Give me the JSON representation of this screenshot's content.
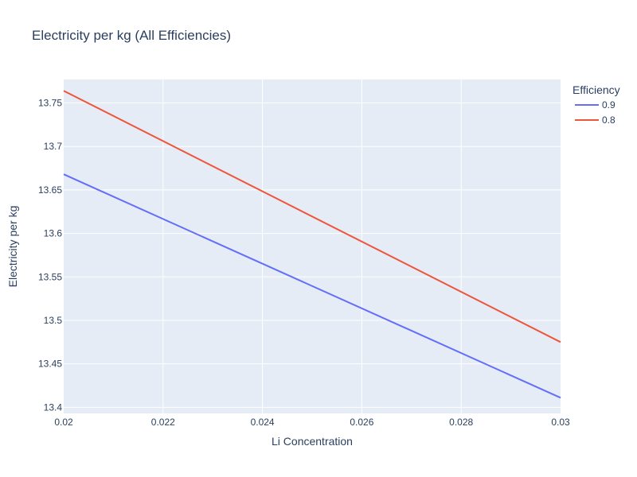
{
  "chart_data": {
    "type": "line",
    "title": "Electricity per kg (All Efficiencies)",
    "xlabel": "Li Concentration",
    "ylabel": "Electricity per kg",
    "xlim": [
      0.02,
      0.03
    ],
    "ylim": [
      13.393,
      13.777
    ],
    "x_ticks": [
      "0.02",
      "0.022",
      "0.024",
      "0.026",
      "0.028",
      "0.03"
    ],
    "y_ticks": [
      "13.4",
      "13.45",
      "13.5",
      "13.55",
      "13.6",
      "13.65",
      "13.7",
      "13.75"
    ],
    "grid": true,
    "legend_title": "Efficiency",
    "legend_position": "top-right",
    "background_color": "#e5ecf6",
    "series": [
      {
        "name": "0.9",
        "color": "#636efa",
        "x": [
          0.02,
          0.03
        ],
        "y": [
          13.668,
          13.411
        ]
      },
      {
        "name": "0.8",
        "color": "#ef553b",
        "x": [
          0.02,
          0.03
        ],
        "y": [
          13.764,
          13.475
        ]
      }
    ]
  }
}
